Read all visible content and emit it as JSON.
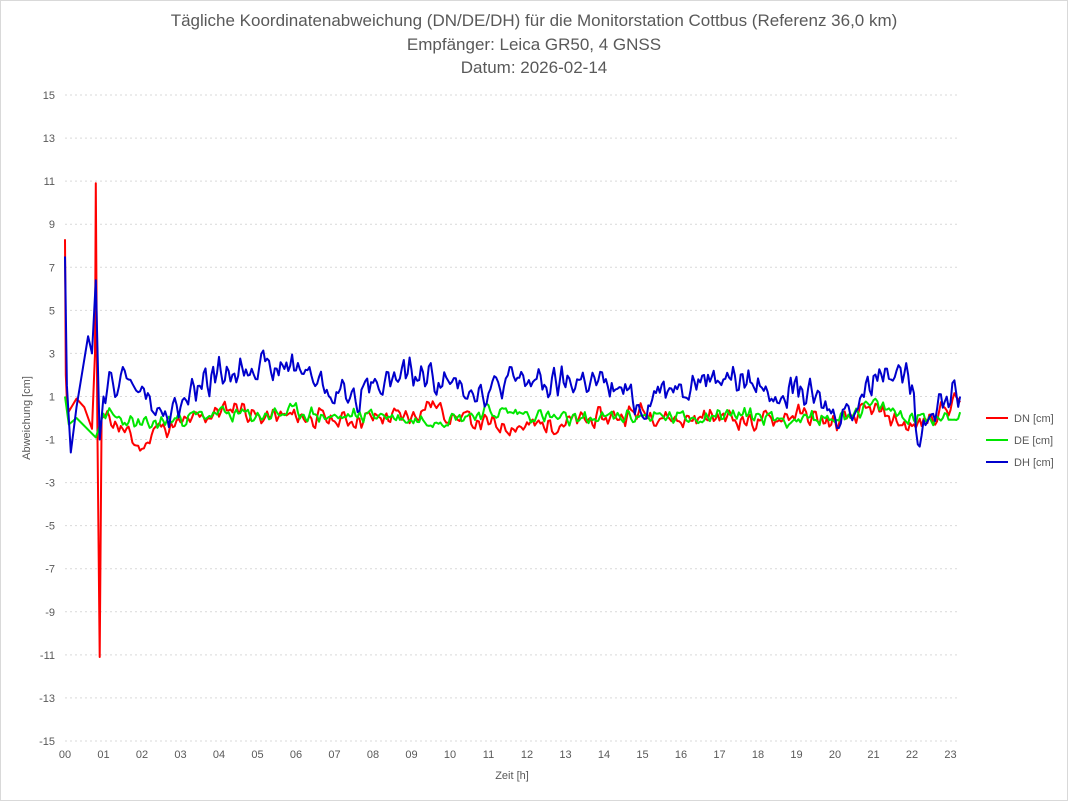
{
  "chart_data": {
    "type": "line",
    "title": "Tägliche Koordinatenabweichung (DN/DE/DH) für die Monitorstation Cottbus (Referenz 36,0 km)",
    "subtitle": "Empfänger: Leica GR50, 4 GNSS",
    "date_line": "Datum: 2026-02-14",
    "xlabel": "Zeit [h]",
    "ylabel": "Abweichung [cm]",
    "ylim": [
      -15,
      15
    ],
    "xlim": [
      0,
      23.25
    ],
    "y_ticks": [
      15,
      13,
      11,
      9,
      7,
      5,
      3,
      1,
      -1,
      -3,
      -5,
      -7,
      -9,
      -11,
      -13,
      -15
    ],
    "x_ticks": [
      "00",
      "01",
      "02",
      "03",
      "04",
      "05",
      "06",
      "07",
      "08",
      "09",
      "10",
      "11",
      "12",
      "13",
      "14",
      "15",
      "16",
      "17",
      "18",
      "19",
      "20",
      "21",
      "22",
      "23"
    ],
    "grid": true,
    "legend_position": "right",
    "sample_interval_h": 0.05,
    "series": [
      {
        "name": "DN [cm]",
        "color": "#ff0000",
        "anchors": [
          [
            0,
            8.3
          ],
          [
            0.02,
            2.0
          ],
          [
            0.05,
            0.8
          ],
          [
            0.1,
            0.3
          ],
          [
            0.3,
            0.9
          ],
          [
            0.5,
            0.5
          ],
          [
            0.7,
            -0.5
          ],
          [
            0.78,
            3.0
          ],
          [
            0.8,
            10.9
          ],
          [
            0.84,
            0.0
          ],
          [
            0.9,
            -11.1
          ],
          [
            0.95,
            0.0
          ],
          [
            1.2,
            0.0
          ],
          [
            2.0,
            -1.5
          ],
          [
            2.3,
            -0.5
          ],
          [
            3.0,
            -0.3
          ],
          [
            4.0,
            0.3
          ],
          [
            4.5,
            0.6
          ],
          [
            5.0,
            0.0
          ],
          [
            6.0,
            0.1
          ],
          [
            7.0,
            -0.1
          ],
          [
            8.0,
            0.0
          ],
          [
            9.0,
            0.1
          ],
          [
            9.5,
            0.7
          ],
          [
            10.0,
            0.1
          ],
          [
            11.0,
            -0.3
          ],
          [
            12.0,
            -0.4
          ],
          [
            13.0,
            -0.2
          ],
          [
            14.0,
            0.0
          ],
          [
            15.0,
            0.3
          ],
          [
            16.0,
            -0.1
          ],
          [
            17.0,
            0.1
          ],
          [
            18.0,
            -0.2
          ],
          [
            19.0,
            0.2
          ],
          [
            20.0,
            -0.3
          ],
          [
            21.0,
            0.4
          ],
          [
            22.0,
            -0.5
          ],
          [
            22.5,
            0.1
          ],
          [
            23.0,
            0.6
          ],
          [
            23.2,
            0.9
          ]
        ],
        "amp": 0.55,
        "seed": 11
      },
      {
        "name": "DE [cm]",
        "color": "#00e600",
        "anchors": [
          [
            0,
            1.0
          ],
          [
            0.1,
            -0.3
          ],
          [
            0.3,
            0.0
          ],
          [
            0.8,
            -0.9
          ],
          [
            1.0,
            0.2
          ],
          [
            2.0,
            -0.4
          ],
          [
            3.0,
            0.0
          ],
          [
            4.0,
            0.2
          ],
          [
            5.0,
            0.1
          ],
          [
            6.0,
            0.3
          ],
          [
            7.0,
            0.0
          ],
          [
            8.0,
            0.2
          ],
          [
            9.0,
            -0.1
          ],
          [
            10.0,
            0.0
          ],
          [
            11.0,
            0.3
          ],
          [
            12.0,
            0.2
          ],
          [
            13.0,
            -0.1
          ],
          [
            14.0,
            0.0
          ],
          [
            15.0,
            0.1
          ],
          [
            16.0,
            0.0
          ],
          [
            17.0,
            0.2
          ],
          [
            18.0,
            0.1
          ],
          [
            19.0,
            -0.1
          ],
          [
            20.0,
            0.0
          ],
          [
            21.0,
            0.6
          ],
          [
            22.0,
            0.0
          ],
          [
            23.0,
            0.1
          ],
          [
            23.2,
            0.2
          ]
        ],
        "amp": 0.45,
        "seed": 23
      },
      {
        "name": "DH [cm]",
        "color": "#0000cc",
        "anchors": [
          [
            0,
            7.5
          ],
          [
            0.05,
            1.5
          ],
          [
            0.15,
            -1.6
          ],
          [
            0.3,
            0.5
          ],
          [
            0.6,
            3.8
          ],
          [
            0.7,
            3.0
          ],
          [
            0.8,
            6.4
          ],
          [
            0.9,
            -1.0
          ],
          [
            1.0,
            1.0
          ],
          [
            1.5,
            2.0
          ],
          [
            2.0,
            1.2
          ],
          [
            2.5,
            0.0
          ],
          [
            3.0,
            0.5
          ],
          [
            3.5,
            1.5
          ],
          [
            4.0,
            2.0
          ],
          [
            4.5,
            2.3
          ],
          [
            5.0,
            2.6
          ],
          [
            5.5,
            2.2
          ],
          [
            6.0,
            2.5
          ],
          [
            6.5,
            1.8
          ],
          [
            7.0,
            1.2
          ],
          [
            7.5,
            1.0
          ],
          [
            8.0,
            1.6
          ],
          [
            8.5,
            1.8
          ],
          [
            9.0,
            2.0
          ],
          [
            9.5,
            1.9
          ],
          [
            10.0,
            1.5
          ],
          [
            10.5,
            1.5
          ],
          [
            11.0,
            1.2
          ],
          [
            11.5,
            1.7
          ],
          [
            12.0,
            1.8
          ],
          [
            12.5,
            1.5
          ],
          [
            13.0,
            1.6
          ],
          [
            13.5,
            1.8
          ],
          [
            14.0,
            1.5
          ],
          [
            14.5,
            1.2
          ],
          [
            15.0,
            0.5
          ],
          [
            15.5,
            1.5
          ],
          [
            16.0,
            1.6
          ],
          [
            16.5,
            1.8
          ],
          [
            17.0,
            2.0
          ],
          [
            17.5,
            1.8
          ],
          [
            18.0,
            1.5
          ],
          [
            18.5,
            1.2
          ],
          [
            19.0,
            1.5
          ],
          [
            19.3,
            1.0
          ],
          [
            20.0,
            0.2
          ],
          [
            20.5,
            0.5
          ],
          [
            21.0,
            2.0
          ],
          [
            21.5,
            2.5
          ],
          [
            22.0,
            1.5
          ],
          [
            22.1,
            -0.8
          ],
          [
            22.5,
            0.5
          ],
          [
            23.0,
            1.0
          ],
          [
            23.1,
            1.8
          ],
          [
            23.2,
            1.0
          ]
        ],
        "amp": 0.9,
        "seed": 47
      }
    ]
  }
}
